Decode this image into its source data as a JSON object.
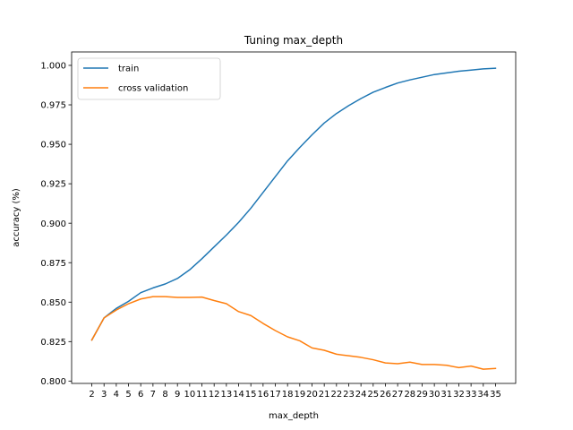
{
  "chart_data": {
    "type": "line",
    "title": "Tuning max_depth",
    "xlabel": "max_depth",
    "ylabel": "accuracy (%)",
    "x": [
      2,
      3,
      4,
      5,
      6,
      7,
      8,
      9,
      10,
      11,
      12,
      13,
      14,
      15,
      16,
      17,
      18,
      19,
      20,
      21,
      22,
      23,
      24,
      25,
      26,
      27,
      28,
      29,
      30,
      31,
      32,
      33,
      34,
      35
    ],
    "xlim": [
      0.35,
      36.65
    ],
    "ylim": [
      0.7985,
      1.0085
    ],
    "yticks": [
      0.8,
      0.825,
      0.85,
      0.875,
      0.9,
      0.925,
      0.95,
      0.975,
      1.0
    ],
    "ytick_labels": [
      "0.800",
      "0.825",
      "0.850",
      "0.875",
      "0.900",
      "0.925",
      "0.950",
      "0.975",
      "1.000"
    ],
    "legend_position": "top-left",
    "series": [
      {
        "name": "train",
        "color": "#1f77b4",
        "values": [
          0.826,
          0.84,
          0.846,
          0.8505,
          0.856,
          0.859,
          0.8615,
          0.865,
          0.8705,
          0.8775,
          0.885,
          0.8925,
          0.9005,
          0.9095,
          0.9195,
          0.9295,
          0.9395,
          0.948,
          0.956,
          0.9635,
          0.9695,
          0.9745,
          0.979,
          0.983,
          0.986,
          0.9888,
          0.9908,
          0.9925,
          0.9942,
          0.9952,
          0.9963,
          0.997,
          0.9978,
          0.9982
        ]
      },
      {
        "name": "cross validation",
        "color": "#ff7f0e",
        "values": [
          0.826,
          0.84,
          0.845,
          0.849,
          0.852,
          0.8535,
          0.8535,
          0.853,
          0.853,
          0.8532,
          0.851,
          0.849,
          0.844,
          0.8415,
          0.8365,
          0.832,
          0.828,
          0.8255,
          0.821,
          0.8195,
          0.817,
          0.816,
          0.815,
          0.8135,
          0.8115,
          0.811,
          0.812,
          0.8105,
          0.8105,
          0.81,
          0.8085,
          0.8095,
          0.8075,
          0.808
        ]
      }
    ]
  }
}
